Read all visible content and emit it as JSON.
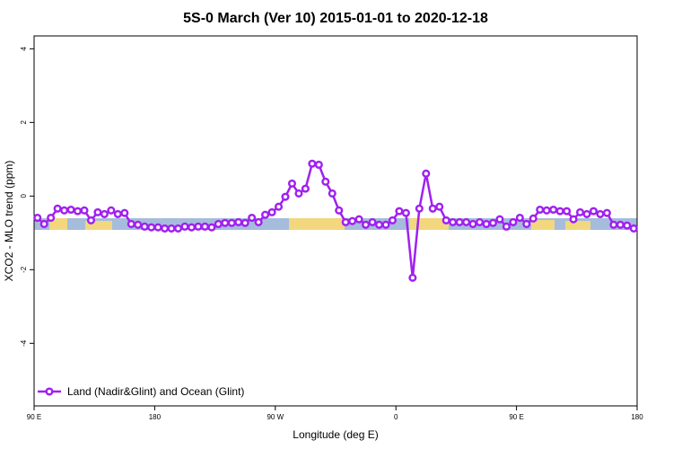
{
  "chart_data": {
    "type": "line",
    "title": "5S-0 March (Ver 10)   2015-01-01 to 2020-12-18",
    "x_label": "Longitude (deg E)",
    "y_label": "XCO2 - MLO trend (ppm)",
    "xlim": [
      90,
      540
    ],
    "ylim": [
      -5.7,
      4.35
    ],
    "xticks": [
      {
        "value": 90,
        "label": "90 E"
      },
      180,
      {
        "value": 270,
        "label": "90 W"
      },
      {
        "value": 360,
        "label": "0"
      },
      {
        "value": 450,
        "label": "90 E"
      },
      {
        "value": 540,
        "label": "180"
      }
    ],
    "yticks": [
      -4,
      -2,
      0,
      2,
      4
    ],
    "legend": "bottom-left",
    "x": [
      92.5,
      97.5,
      102.5,
      107.5,
      112.5,
      117.5,
      122.5,
      127.5,
      132.5,
      137.5,
      142.5,
      147.5,
      152.5,
      157.5,
      162.5,
      167.5,
      172.5,
      177.5,
      182.5,
      187.5,
      192.5,
      197.5,
      202.5,
      207.5,
      212.5,
      217.5,
      222.5,
      227.5,
      232.5,
      237.5,
      242.5,
      247.5,
      252.5,
      257.5,
      262.5,
      267.5,
      272.5,
      277.5,
      282.5,
      287.5,
      292.5,
      297.5,
      302.5,
      307.5,
      312.5,
      317.5,
      322.5,
      327.5,
      332.5,
      337.5,
      342.5,
      347.5,
      352.5,
      357.5,
      362.5,
      367.5,
      372.5,
      377.5,
      382.5,
      387.5,
      392.5,
      397.5,
      402.5,
      407.5,
      412.5,
      417.5,
      422.5,
      427.5,
      432.5,
      437.5,
      442.5,
      447.5,
      452.5,
      457.5,
      462.5,
      467.5,
      472.5,
      477.5,
      482.5,
      487.5,
      492.5,
      497.5,
      502.5,
      507.5,
      512.5,
      517.5,
      522.5,
      527.5,
      532.5,
      537.5
    ],
    "series": [
      {
        "name": "Land (Nadir&Glint) and Ocean (Glint)",
        "color": "#a020f0",
        "values": [
          -0.59,
          -0.76,
          -0.59,
          -0.34,
          -0.39,
          -0.37,
          -0.41,
          -0.39,
          -0.66,
          -0.44,
          -0.49,
          -0.39,
          -0.49,
          -0.46,
          -0.76,
          -0.78,
          -0.83,
          -0.85,
          -0.85,
          -0.88,
          -0.88,
          -0.88,
          -0.83,
          -0.85,
          -0.83,
          -0.83,
          -0.85,
          -0.76,
          -0.73,
          -0.73,
          -0.71,
          -0.73,
          -0.59,
          -0.71,
          -0.51,
          -0.44,
          -0.29,
          -0.02,
          0.34,
          0.07,
          0.2,
          0.88,
          0.85,
          0.39,
          0.07,
          -0.39,
          -0.71,
          -0.68,
          -0.63,
          -0.78,
          -0.71,
          -0.78,
          -0.78,
          -0.66,
          -0.41,
          -0.46,
          -2.22,
          -0.34,
          0.61,
          -0.34,
          -0.29,
          -0.66,
          -0.71,
          -0.71,
          -0.71,
          -0.76,
          -0.71,
          -0.76,
          -0.73,
          -0.63,
          -0.83,
          -0.71,
          -0.59,
          -0.76,
          -0.61,
          -0.37,
          -0.39,
          -0.37,
          -0.41,
          -0.41,
          -0.63,
          -0.44,
          -0.49,
          -0.41,
          -0.49,
          -0.46,
          -0.78,
          -0.78,
          -0.8,
          -0.88
        ]
      }
    ]
  }
}
